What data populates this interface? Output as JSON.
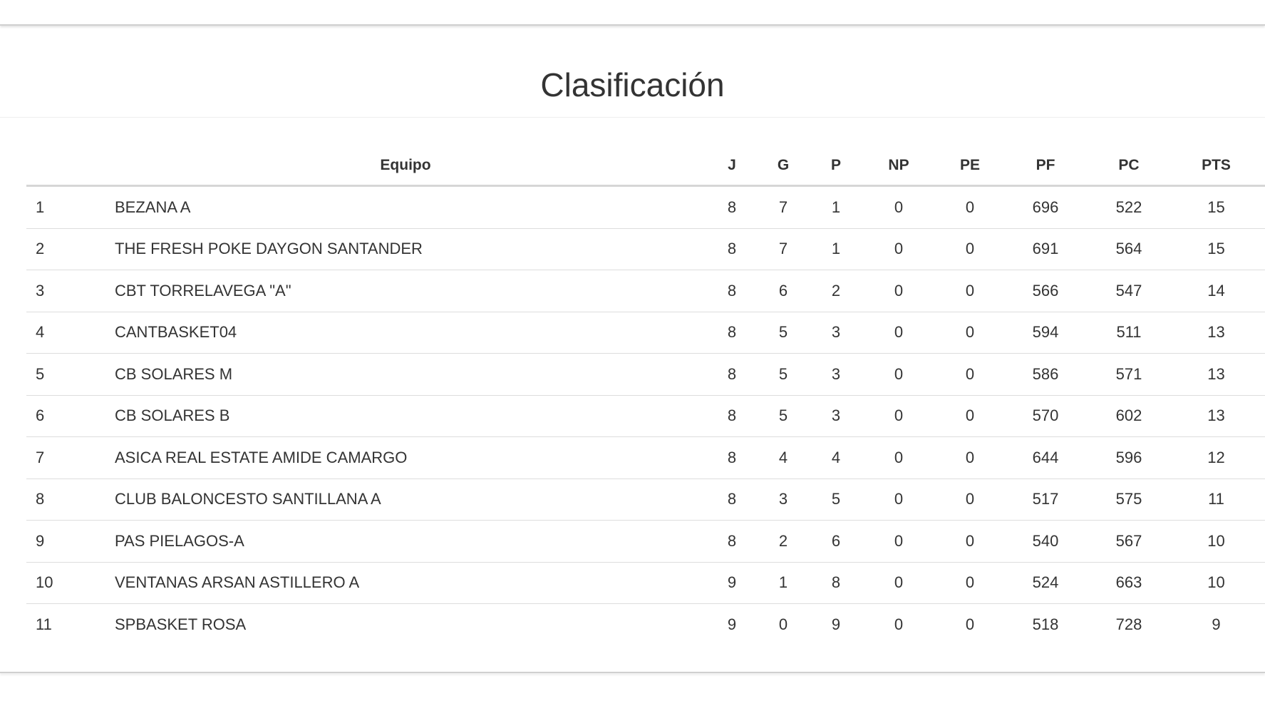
{
  "title": "Clasificación",
  "columns": [
    "",
    "Equipo",
    "J",
    "G",
    "P",
    "NP",
    "PE",
    "PF",
    "PC",
    "PTS"
  ],
  "rows": [
    [
      "1",
      "BEZANA A",
      "8",
      "7",
      "1",
      "0",
      "0",
      "696",
      "522",
      "15"
    ],
    [
      "2",
      "THE FRESH POKE DAYGON SANTANDER",
      "8",
      "7",
      "1",
      "0",
      "0",
      "691",
      "564",
      "15"
    ],
    [
      "3",
      "CBT TORRELAVEGA \"A\"",
      "8",
      "6",
      "2",
      "0",
      "0",
      "566",
      "547",
      "14"
    ],
    [
      "4",
      "CANTBASKET04",
      "8",
      "5",
      "3",
      "0",
      "0",
      "594",
      "511",
      "13"
    ],
    [
      "5",
      "CB SOLARES M",
      "8",
      "5",
      "3",
      "0",
      "0",
      "586",
      "571",
      "13"
    ],
    [
      "6",
      "CB SOLARES B",
      "8",
      "5",
      "3",
      "0",
      "0",
      "570",
      "602",
      "13"
    ],
    [
      "7",
      "ASICA REAL ESTATE AMIDE CAMARGO",
      "8",
      "4",
      "4",
      "0",
      "0",
      "644",
      "596",
      "12"
    ],
    [
      "8",
      "CLUB BALONCESTO SANTILLANA A",
      "8",
      "3",
      "5",
      "0",
      "0",
      "517",
      "575",
      "11"
    ],
    [
      "9",
      "PAS PIELAGOS-A",
      "8",
      "2",
      "6",
      "0",
      "0",
      "540",
      "567",
      "10"
    ],
    [
      "10",
      "VENTANAS ARSAN ASTILLERO A",
      "9",
      "1",
      "8",
      "0",
      "0",
      "524",
      "663",
      "10"
    ],
    [
      "11",
      "SPBASKET ROSA",
      "9",
      "0",
      "9",
      "0",
      "0",
      "518",
      "728",
      "9"
    ]
  ]
}
